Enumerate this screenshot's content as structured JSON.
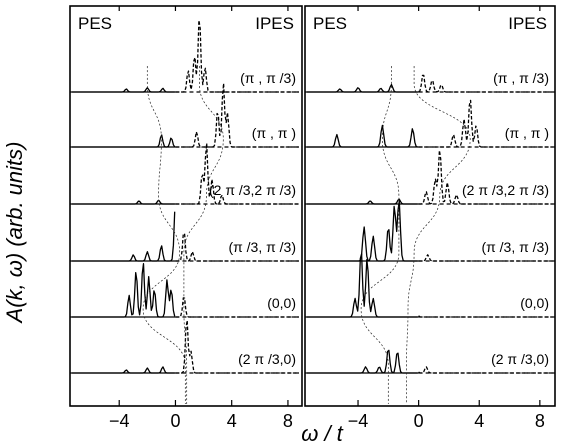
{
  "chart_data": {
    "type": "line",
    "ylabel": "A(k, ω) (arb. units)",
    "xlabel": "ω / t",
    "xlim": [
      -7.5,
      9
    ],
    "xticks": [
      -4,
      0,
      4,
      8
    ],
    "xtick_labels": [
      "−4",
      "0",
      "4",
      "8"
    ],
    "grid": false,
    "panels": [
      {
        "name": "left",
        "corner_labels": {
          "left": "PES",
          "right": "IPES"
        },
        "spectra": [
          {
            "k": "(π , π /3)",
            "pes": [
              [
                -3.5,
                0.05
              ],
              [
                -2.0,
                0.07
              ],
              [
                -0.9,
                0.06
              ]
            ],
            "ipes": [
              [
                0.9,
                0.35
              ],
              [
                1.35,
                0.6
              ],
              [
                1.7,
                1.25
              ],
              [
                2.1,
                0.4
              ]
            ]
          },
          {
            "k": "(π , π )",
            "pes": [
              [
                -1.0,
                0.2
              ],
              [
                -0.3,
                0.15
              ]
            ],
            "ipes": [
              [
                1.5,
                0.25
              ],
              [
                3.0,
                0.6
              ],
              [
                3.4,
                1.05
              ],
              [
                3.7,
                0.55
              ]
            ]
          },
          {
            "k": "(2 π /3,2 π /3)",
            "pes": [
              [
                -2.6,
                0.05
              ],
              [
                -1.2,
                0.06
              ]
            ],
            "ipes": [
              [
                1.9,
                0.5
              ],
              [
                2.2,
                1.0
              ],
              [
                2.6,
                0.4
              ],
              [
                3.3,
                0.15
              ]
            ]
          },
          {
            "k": "(π /3, π /3)",
            "pes": [
              [
                -3.0,
                0.1
              ],
              [
                -2.0,
                0.15
              ],
              [
                -1.0,
                0.25
              ],
              [
                0.0,
                0.95
              ],
              [
                0.3,
                1.0
              ]
            ],
            "ipes": [
              [
                0.6,
                0.5
              ],
              [
                1.2,
                0.15
              ]
            ]
          },
          {
            "k": "(0,0)",
            "pes": [
              [
                -3.3,
                0.35
              ],
              [
                -2.8,
                0.75
              ],
              [
                -2.3,
                0.9
              ],
              [
                -1.9,
                0.65
              ],
              [
                -1.5,
                0.45
              ],
              [
                -0.6,
                0.6
              ],
              [
                -0.3,
                0.45
              ]
            ],
            "ipes": [
              [
                0.6,
                0.35
              ]
            ]
          },
          {
            "k": "(2 π /3,0)",
            "pes": [
              [
                -3.5,
                0.05
              ],
              [
                -2.0,
                0.08
              ],
              [
                -0.9,
                0.1
              ],
              [
                0.4,
                0.5
              ],
              [
                0.7,
                0.7
              ]
            ],
            "ipes": [
              [
                0.8,
                0.9
              ],
              [
                1.1,
                0.35
              ]
            ]
          }
        ]
      },
      {
        "name": "right",
        "corner_labels": {
          "left": "PES",
          "right": "IPES"
        },
        "spectra": [
          {
            "k": "(π , π /3)",
            "pes": [
              [
                -5.2,
                0.05
              ],
              [
                -4.0,
                0.07
              ],
              [
                -2.5,
                0.06
              ],
              [
                -1.8,
                0.12
              ]
            ],
            "ipes": [
              [
                -0.3,
                1.25
              ],
              [
                0.3,
                0.3
              ],
              [
                0.9,
                0.2
              ],
              [
                1.5,
                0.12
              ]
            ]
          },
          {
            "k": "(π , π )",
            "pes": [
              [
                -5.4,
                0.2
              ],
              [
                -2.4,
                0.35
              ],
              [
                -0.4,
                0.3
              ]
            ],
            "ipes": [
              [
                2.3,
                0.2
              ],
              [
                3.0,
                0.45
              ],
              [
                3.4,
                0.8
              ],
              [
                3.8,
                0.35
              ]
            ]
          },
          {
            "k": "(2 π /3,2 π /3)",
            "pes": [
              [
                -3.2,
                0.05
              ],
              [
                -1.3,
                0.08
              ]
            ],
            "ipes": [
              [
                0.5,
                0.2
              ],
              [
                1.1,
                0.4
              ],
              [
                1.4,
                0.9
              ],
              [
                1.9,
                0.35
              ],
              [
                2.5,
                0.15
              ]
            ]
          },
          {
            "k": "(π /3, π /3)",
            "pes": [
              [
                -3.6,
                0.55
              ],
              [
                -3.0,
                0.4
              ],
              [
                -2.0,
                0.55
              ],
              [
                -1.6,
                0.9
              ],
              [
                -1.3,
                1.0
              ]
            ],
            "ipes": [
              [
                -0.3,
                0.2
              ],
              [
                0.6,
                0.1
              ]
            ]
          },
          {
            "k": "(0,0)",
            "pes": [
              [
                -4.2,
                0.3
              ],
              [
                -3.8,
                1.1
              ],
              [
                -3.4,
                0.95
              ],
              [
                -3.0,
                0.3
              ]
            ],
            "ipes": [
              [
                -1.0,
                0.35
              ],
              [
                -0.7,
                1.35
              ],
              [
                -0.2,
                0.25
              ]
            ]
          },
          {
            "k": "(2 π /3,0)",
            "pes": [
              [
                -3.5,
                0.1
              ],
              [
                -2.6,
                0.1
              ],
              [
                -2.0,
                0.4
              ],
              [
                -1.4,
                0.35
              ]
            ],
            "ipes": [
              [
                -0.8,
                0.7
              ],
              [
                -0.2,
                0.2
              ],
              [
                0.5,
                0.1
              ]
            ]
          }
        ]
      }
    ]
  }
}
